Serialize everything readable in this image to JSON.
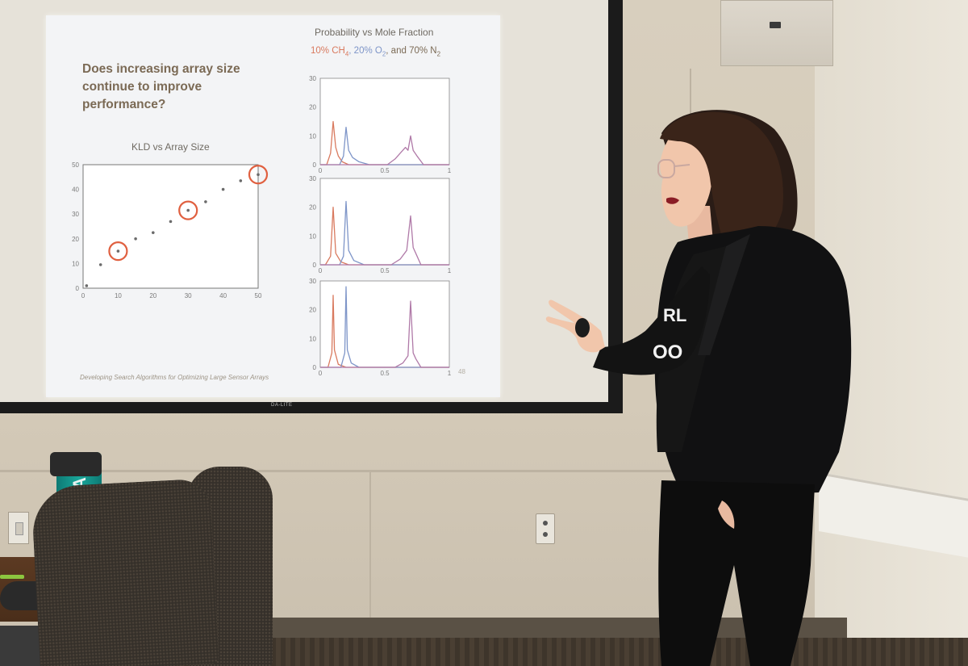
{
  "slide": {
    "title": "Does increasing array size continue to improve performance?",
    "footer": "Developing Search Algorithms for Optimizing Large Sensor Arrays",
    "page_number": "48",
    "projector_brand": "DA-LITE"
  },
  "shirt_text": {
    "line1": "RL",
    "line2": "OO"
  },
  "bottle_text": "ENNA",
  "colors": {
    "ch4": "#d97a5f",
    "o2": "#7e95c8",
    "n2": "#b07aa8",
    "scatter_point": "#6b6b6b",
    "highlight_circle": "#e06040",
    "title_text": "#7b6a55"
  },
  "chart_data": [
    {
      "type": "scatter",
      "title": "KLD vs Array Size",
      "xlabel": "",
      "ylabel": "",
      "xlim": [
        0,
        50
      ],
      "ylim": [
        0,
        50
      ],
      "xticks": [
        "0",
        "10",
        "20",
        "30",
        "40",
        "50"
      ],
      "yticks": [
        "0",
        "10",
        "20",
        "30",
        "40",
        "50"
      ],
      "grid": false,
      "x": [
        1,
        5,
        10,
        15,
        20,
        25,
        30,
        35,
        40,
        45,
        50
      ],
      "y": [
        1,
        9.5,
        15,
        20,
        22.5,
        27,
        31.5,
        35,
        40,
        43.5,
        46
      ],
      "highlighted_x": [
        10,
        30,
        50
      ]
    },
    {
      "type": "line",
      "title": "Probability vs Mole Fraction",
      "subtitle_parts": [
        "10% CH",
        "4",
        ", 20% O",
        "2",
        ", and 70% N",
        "2"
      ],
      "panels": [
        {
          "xlim": [
            0,
            1
          ],
          "ylim": [
            0,
            30
          ],
          "xticks": [
            "0",
            "0.5",
            "1"
          ],
          "yticks": [
            "0",
            "10",
            "20",
            "30"
          ],
          "series": [
            {
              "color": "#d97a5f",
              "x": [
                0,
                0.05,
                0.08,
                0.1,
                0.12,
                0.14,
                0.17,
                0.22,
                1
              ],
              "y": [
                0,
                0,
                4,
                15,
                6,
                3,
                1,
                0,
                0
              ]
            },
            {
              "color": "#7e95c8",
              "x": [
                0,
                0.15,
                0.18,
                0.2,
                0.22,
                0.25,
                0.3,
                0.38,
                1
              ],
              "y": [
                0,
                0,
                3,
                13,
                5,
                2.5,
                1,
                0,
                0
              ]
            },
            {
              "color": "#b07aa8",
              "x": [
                0,
                0.52,
                0.58,
                0.62,
                0.66,
                0.68,
                0.7,
                0.72,
                0.75,
                0.8,
                1
              ],
              "y": [
                0,
                0,
                2,
                4,
                6,
                5,
                10,
                5,
                3,
                0,
                0
              ]
            }
          ]
        },
        {
          "xlim": [
            0,
            1
          ],
          "ylim": [
            0,
            30
          ],
          "xticks": [
            "0",
            "0.5",
            "1"
          ],
          "yticks": [
            "0",
            "10",
            "20",
            "30"
          ],
          "series": [
            {
              "color": "#d97a5f",
              "x": [
                0,
                0.04,
                0.08,
                0.1,
                0.12,
                0.16,
                0.22,
                1
              ],
              "y": [
                0,
                0,
                3,
                20,
                4,
                1,
                0,
                0
              ]
            },
            {
              "color": "#7e95c8",
              "x": [
                0,
                0.15,
                0.18,
                0.2,
                0.22,
                0.26,
                0.34,
                1
              ],
              "y": [
                0,
                0,
                3,
                22,
                5,
                1.5,
                0,
                0
              ]
            },
            {
              "color": "#b07aa8",
              "x": [
                0,
                0.55,
                0.62,
                0.67,
                0.7,
                0.72,
                0.74,
                0.78,
                1
              ],
              "y": [
                0,
                0,
                2,
                5,
                17,
                6,
                4,
                0,
                0
              ]
            }
          ]
        },
        {
          "xlim": [
            0,
            1
          ],
          "ylim": [
            0,
            30
          ],
          "xticks": [
            "0",
            "0.5",
            "1"
          ],
          "yticks": [
            "0",
            "10",
            "20",
            "30"
          ],
          "series": [
            {
              "color": "#d97a5f",
              "x": [
                0,
                0.06,
                0.09,
                0.1,
                0.11,
                0.14,
                0.2,
                1
              ],
              "y": [
                0,
                0,
                5,
                25,
                6,
                1,
                0,
                0
              ]
            },
            {
              "color": "#7e95c8",
              "x": [
                0,
                0.16,
                0.19,
                0.2,
                0.21,
                0.24,
                0.3,
                1
              ],
              "y": [
                0,
                0,
                5,
                28,
                6,
                1.5,
                0,
                0
              ]
            },
            {
              "color": "#b07aa8",
              "x": [
                0,
                0.58,
                0.64,
                0.68,
                0.7,
                0.72,
                0.74,
                0.78,
                1
              ],
              "y": [
                0,
                0,
                1.5,
                4,
                23,
                5,
                3,
                0,
                0
              ]
            }
          ]
        }
      ]
    }
  ]
}
